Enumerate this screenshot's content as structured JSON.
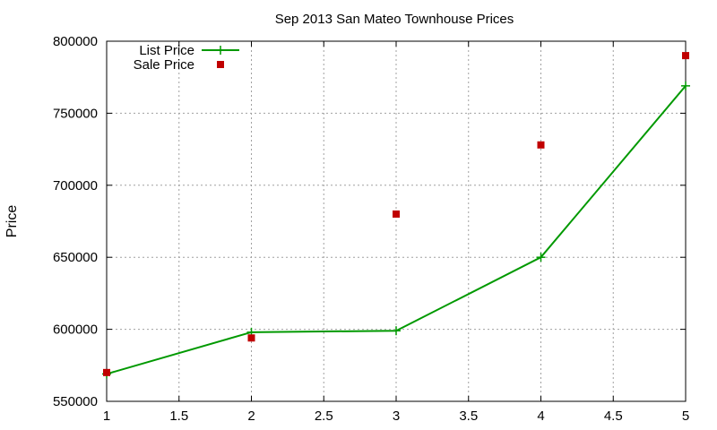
{
  "chart_data": {
    "type": "line",
    "title": "Sep 2013 San Mateo Townhouse Prices",
    "xlabel": "",
    "ylabel": "Price",
    "xlim": [
      1,
      5
    ],
    "ylim": [
      550000,
      800000
    ],
    "x_ticks": [
      "1",
      "1.5",
      "2",
      "2.5",
      "3",
      "3.5",
      "4",
      "4.5",
      "5"
    ],
    "y_ticks": [
      "550000",
      "600000",
      "650000",
      "700000",
      "750000",
      "800000"
    ],
    "grid": true,
    "legend_position": "top-left",
    "series": [
      {
        "name": "List Price",
        "kind": "line",
        "marker": "plus",
        "color": "#009900",
        "x": [
          1,
          2,
          3,
          4,
          5
        ],
        "y": [
          569000,
          598000,
          599000,
          650000,
          769000
        ]
      },
      {
        "name": "Sale Price",
        "kind": "points",
        "marker": "square",
        "color": "#c00000",
        "x": [
          1,
          2,
          3,
          4,
          5
        ],
        "y": [
          570000,
          594000,
          680000,
          728000,
          790000
        ]
      }
    ]
  }
}
